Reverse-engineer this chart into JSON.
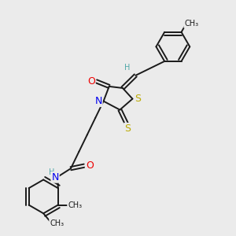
{
  "bg_color": "#ebebeb",
  "bond_color": "#1a1a1a",
  "N_color": "#0000ee",
  "O_color": "#ee0000",
  "S_color": "#bbaa00",
  "H_color": "#4fa8a8",
  "font_size": 8,
  "line_width": 1.4,
  "figsize": [
    3.0,
    3.0
  ],
  "dpi": 100,
  "xlim": [
    0,
    10
  ],
  "ylim": [
    0,
    10
  ]
}
